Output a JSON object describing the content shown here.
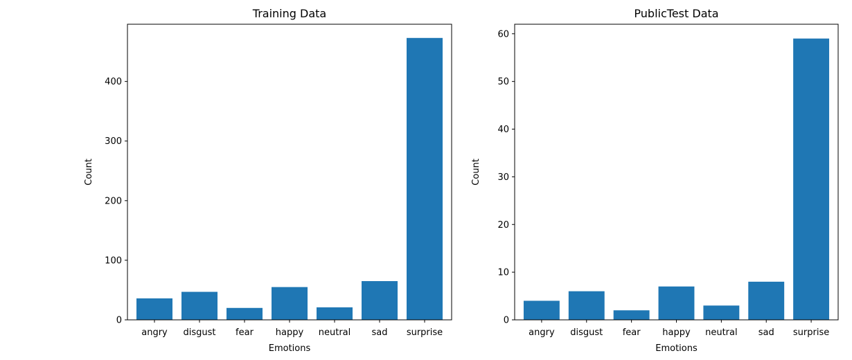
{
  "bar_color": "#1f77b4",
  "chart_data": [
    {
      "type": "bar",
      "title": "Training Data",
      "xlabel": "Emotions",
      "ylabel": "Count",
      "categories": [
        "angry",
        "disgust",
        "fear",
        "happy",
        "neutral",
        "sad",
        "surprise"
      ],
      "values": [
        36,
        47,
        20,
        55,
        21,
        65,
        473
      ],
      "ylim": [
        0,
        496
      ],
      "yticks": [
        "0",
        "100",
        "200",
        "300",
        "400"
      ],
      "grid": false,
      "color": "#1f77b4"
    },
    {
      "type": "bar",
      "title": "PublicTest Data",
      "xlabel": "Emotions",
      "ylabel": "Count",
      "categories": [
        "angry",
        "disgust",
        "fear",
        "happy",
        "neutral",
        "sad",
        "surprise"
      ],
      "values": [
        4,
        6,
        2,
        7,
        3,
        8,
        59
      ],
      "ylim": [
        0,
        62
      ],
      "yticks": [
        "0",
        "10",
        "20",
        "30",
        "40",
        "50",
        "60"
      ],
      "grid": false,
      "color": "#1f77b4"
    }
  ]
}
